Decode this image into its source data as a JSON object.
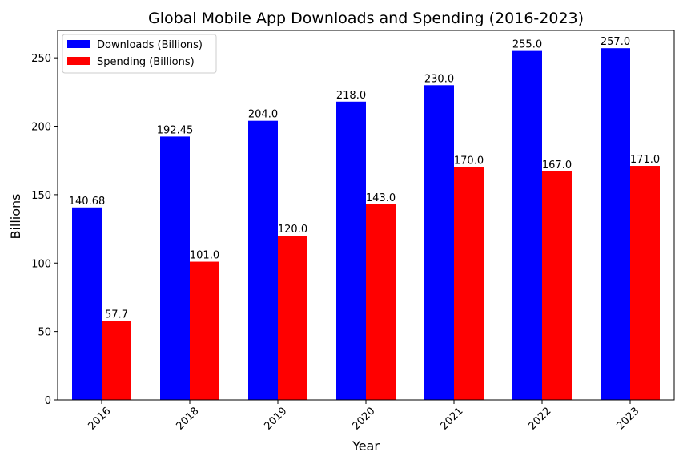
{
  "chart_data": {
    "type": "bar",
    "title": "Global Mobile App Downloads and Spending (2016-2023)",
    "xlabel": "Year",
    "ylabel": "Billions",
    "categories": [
      "2016",
      "2018",
      "2019",
      "2020",
      "2021",
      "2022",
      "2023"
    ],
    "series": [
      {
        "name": "Downloads (Billions)",
        "color": "#0000ff",
        "values": [
          140.68,
          192.45,
          204.0,
          218.0,
          230.0,
          255.0,
          257.0
        ],
        "labels": [
          "140.68",
          "192.45",
          "204.0",
          "218.0",
          "230.0",
          "255.0",
          "257.0"
        ]
      },
      {
        "name": "Spending (Billions)",
        "color": "#ff0000",
        "values": [
          57.7,
          101.0,
          120.0,
          143.0,
          170.0,
          167.0,
          171.0
        ],
        "labels": [
          "57.7",
          "101.0",
          "120.0",
          "143.0",
          "170.0",
          "167.0",
          "171.0"
        ]
      }
    ],
    "ylim": [
      0,
      270
    ],
    "yticks": [
      0,
      50,
      100,
      150,
      200,
      250
    ],
    "grid": false,
    "legend_position": "top-left"
  }
}
